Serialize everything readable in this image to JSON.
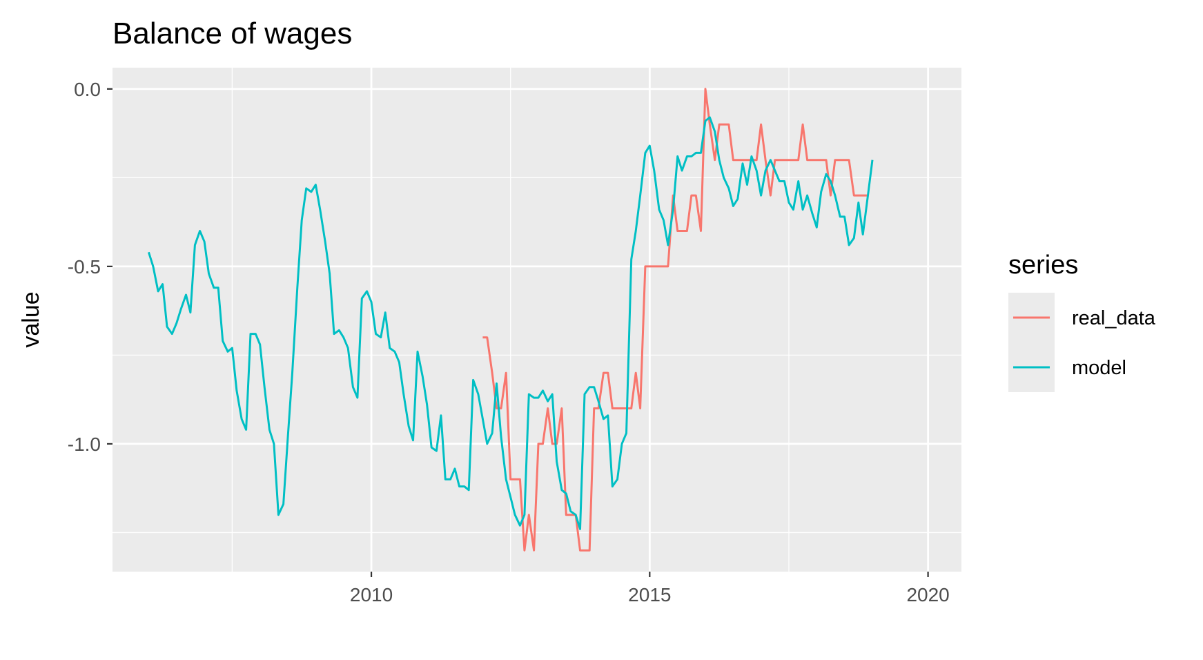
{
  "chart_data": {
    "type": "line",
    "title": "Balance of wages",
    "xlabel": "",
    "ylabel": "value",
    "xlim": [
      2005.35,
      2020.6
    ],
    "ylim": [
      -1.36,
      0.06
    ],
    "x_ticks": [
      2010,
      2015,
      2020
    ],
    "x_tick_labels": [
      "2010",
      "2015",
      "2020"
    ],
    "y_ticks": [
      0.0,
      -0.5,
      -1.0
    ],
    "y_tick_labels": [
      "0.0",
      "-0.5",
      "-1.0"
    ],
    "grid": true,
    "legend": {
      "title": "series",
      "placement": "right",
      "entries": [
        "real_data",
        "model"
      ]
    },
    "series": [
      {
        "name": "real_data",
        "color": "#F8766D",
        "points": [
          [
            2012.0,
            -0.7
          ],
          [
            2012.08,
            -0.7
          ],
          [
            2012.17,
            -0.8
          ],
          [
            2012.25,
            -0.9
          ],
          [
            2012.33,
            -0.9
          ],
          [
            2012.42,
            -0.8
          ],
          [
            2012.5,
            -1.1
          ],
          [
            2012.58,
            -1.1
          ],
          [
            2012.67,
            -1.1
          ],
          [
            2012.75,
            -1.3
          ],
          [
            2012.83,
            -1.2
          ],
          [
            2012.92,
            -1.3
          ],
          [
            2013.0,
            -1.0
          ],
          [
            2013.08,
            -1.0
          ],
          [
            2013.17,
            -0.9
          ],
          [
            2013.25,
            -1.0
          ],
          [
            2013.33,
            -1.0
          ],
          [
            2013.42,
            -0.9
          ],
          [
            2013.5,
            -1.2
          ],
          [
            2013.58,
            -1.2
          ],
          [
            2013.67,
            -1.2
          ],
          [
            2013.75,
            -1.3
          ],
          [
            2013.83,
            -1.3
          ],
          [
            2013.92,
            -1.3
          ],
          [
            2014.0,
            -0.9
          ],
          [
            2014.08,
            -0.9
          ],
          [
            2014.17,
            -0.8
          ],
          [
            2014.25,
            -0.8
          ],
          [
            2014.33,
            -0.9
          ],
          [
            2014.42,
            -0.9
          ],
          [
            2014.5,
            -0.9
          ],
          [
            2014.58,
            -0.9
          ],
          [
            2014.67,
            -0.9
          ],
          [
            2014.75,
            -0.8
          ],
          [
            2014.83,
            -0.9
          ],
          [
            2014.92,
            -0.5
          ],
          [
            2015.0,
            -0.5
          ],
          [
            2015.08,
            -0.5
          ],
          [
            2015.17,
            -0.5
          ],
          [
            2015.25,
            -0.5
          ],
          [
            2015.33,
            -0.5
          ],
          [
            2015.42,
            -0.3
          ],
          [
            2015.5,
            -0.4
          ],
          [
            2015.58,
            -0.4
          ],
          [
            2015.67,
            -0.4
          ],
          [
            2015.75,
            -0.3
          ],
          [
            2015.83,
            -0.3
          ],
          [
            2015.92,
            -0.4
          ],
          [
            2016.0,
            0.0
          ],
          [
            2016.08,
            -0.1
          ],
          [
            2016.17,
            -0.2
          ],
          [
            2016.25,
            -0.1
          ],
          [
            2016.33,
            -0.1
          ],
          [
            2016.42,
            -0.1
          ],
          [
            2016.5,
            -0.2
          ],
          [
            2016.58,
            -0.2
          ],
          [
            2016.67,
            -0.2
          ],
          [
            2016.75,
            -0.2
          ],
          [
            2016.83,
            -0.2
          ],
          [
            2016.92,
            -0.2
          ],
          [
            2017.0,
            -0.1
          ],
          [
            2017.08,
            -0.2
          ],
          [
            2017.17,
            -0.3
          ],
          [
            2017.25,
            -0.2
          ],
          [
            2017.33,
            -0.2
          ],
          [
            2017.42,
            -0.2
          ],
          [
            2017.5,
            -0.2
          ],
          [
            2017.58,
            -0.2
          ],
          [
            2017.67,
            -0.2
          ],
          [
            2017.75,
            -0.1
          ],
          [
            2017.83,
            -0.2
          ],
          [
            2017.92,
            -0.2
          ],
          [
            2018.0,
            -0.2
          ],
          [
            2018.08,
            -0.2
          ],
          [
            2018.17,
            -0.2
          ],
          [
            2018.25,
            -0.3
          ],
          [
            2018.33,
            -0.2
          ],
          [
            2018.42,
            -0.2
          ],
          [
            2018.5,
            -0.2
          ],
          [
            2018.58,
            -0.2
          ],
          [
            2018.67,
            -0.3
          ],
          [
            2018.75,
            -0.3
          ],
          [
            2018.83,
            -0.3
          ],
          [
            2018.92,
            -0.3
          ]
        ]
      },
      {
        "name": "model",
        "color": "#00BFC4",
        "points": [
          [
            2006.0,
            -0.46
          ],
          [
            2006.08,
            -0.5
          ],
          [
            2006.17,
            -0.57
          ],
          [
            2006.25,
            -0.55
          ],
          [
            2006.33,
            -0.67
          ],
          [
            2006.42,
            -0.69
          ],
          [
            2006.5,
            -0.66
          ],
          [
            2006.58,
            -0.62
          ],
          [
            2006.67,
            -0.58
          ],
          [
            2006.75,
            -0.63
          ],
          [
            2006.83,
            -0.44
          ],
          [
            2006.92,
            -0.4
          ],
          [
            2007.0,
            -0.43
          ],
          [
            2007.08,
            -0.52
          ],
          [
            2007.17,
            -0.56
          ],
          [
            2007.25,
            -0.56
          ],
          [
            2007.33,
            -0.71
          ],
          [
            2007.42,
            -0.74
          ],
          [
            2007.5,
            -0.73
          ],
          [
            2007.58,
            -0.85
          ],
          [
            2007.67,
            -0.93
          ],
          [
            2007.75,
            -0.96
          ],
          [
            2007.83,
            -0.69
          ],
          [
            2007.92,
            -0.69
          ],
          [
            2008.0,
            -0.72
          ],
          [
            2008.08,
            -0.84
          ],
          [
            2008.17,
            -0.96
          ],
          [
            2008.25,
            -1.0
          ],
          [
            2008.33,
            -1.2
          ],
          [
            2008.42,
            -1.17
          ],
          [
            2008.5,
            -0.98
          ],
          [
            2008.58,
            -0.8
          ],
          [
            2008.67,
            -0.56
          ],
          [
            2008.75,
            -0.37
          ],
          [
            2008.83,
            -0.28
          ],
          [
            2008.92,
            -0.29
          ],
          [
            2009.0,
            -0.27
          ],
          [
            2009.08,
            -0.34
          ],
          [
            2009.17,
            -0.43
          ],
          [
            2009.25,
            -0.52
          ],
          [
            2009.33,
            -0.69
          ],
          [
            2009.42,
            -0.68
          ],
          [
            2009.5,
            -0.7
          ],
          [
            2009.58,
            -0.73
          ],
          [
            2009.67,
            -0.84
          ],
          [
            2009.75,
            -0.87
          ],
          [
            2009.83,
            -0.59
          ],
          [
            2009.92,
            -0.57
          ],
          [
            2010.0,
            -0.6
          ],
          [
            2010.08,
            -0.69
          ],
          [
            2010.17,
            -0.7
          ],
          [
            2010.25,
            -0.63
          ],
          [
            2010.33,
            -0.73
          ],
          [
            2010.42,
            -0.74
          ],
          [
            2010.5,
            -0.77
          ],
          [
            2010.58,
            -0.86
          ],
          [
            2010.67,
            -0.95
          ],
          [
            2010.75,
            -0.99
          ],
          [
            2010.83,
            -0.74
          ],
          [
            2010.92,
            -0.81
          ],
          [
            2011.0,
            -0.89
          ],
          [
            2011.08,
            -1.01
          ],
          [
            2011.17,
            -1.02
          ],
          [
            2011.25,
            -0.92
          ],
          [
            2011.33,
            -1.1
          ],
          [
            2011.42,
            -1.1
          ],
          [
            2011.5,
            -1.07
          ],
          [
            2011.58,
            -1.12
          ],
          [
            2011.67,
            -1.12
          ],
          [
            2011.75,
            -1.13
          ],
          [
            2011.83,
            -0.82
          ],
          [
            2011.92,
            -0.86
          ],
          [
            2012.0,
            -0.93
          ],
          [
            2012.08,
            -1.0
          ],
          [
            2012.17,
            -0.97
          ],
          [
            2012.25,
            -0.83
          ],
          [
            2012.33,
            -0.98
          ],
          [
            2012.42,
            -1.1
          ],
          [
            2012.5,
            -1.15
          ],
          [
            2012.58,
            -1.2
          ],
          [
            2012.67,
            -1.23
          ],
          [
            2012.75,
            -1.2
          ],
          [
            2012.83,
            -0.86
          ],
          [
            2012.92,
            -0.87
          ],
          [
            2013.0,
            -0.87
          ],
          [
            2013.08,
            -0.85
          ],
          [
            2013.17,
            -0.88
          ],
          [
            2013.25,
            -0.86
          ],
          [
            2013.33,
            -1.05
          ],
          [
            2013.42,
            -1.13
          ],
          [
            2013.5,
            -1.14
          ],
          [
            2013.58,
            -1.19
          ],
          [
            2013.67,
            -1.2
          ],
          [
            2013.75,
            -1.24
          ],
          [
            2013.83,
            -0.86
          ],
          [
            2013.92,
            -0.84
          ],
          [
            2014.0,
            -0.84
          ],
          [
            2014.08,
            -0.88
          ],
          [
            2014.17,
            -0.93
          ],
          [
            2014.25,
            -0.92
          ],
          [
            2014.33,
            -1.12
          ],
          [
            2014.42,
            -1.1
          ],
          [
            2014.5,
            -1.0
          ],
          [
            2014.58,
            -0.97
          ],
          [
            2014.67,
            -0.48
          ],
          [
            2014.75,
            -0.4
          ],
          [
            2014.83,
            -0.3
          ],
          [
            2014.92,
            -0.18
          ],
          [
            2015.0,
            -0.16
          ],
          [
            2015.08,
            -0.23
          ],
          [
            2015.17,
            -0.34
          ],
          [
            2015.25,
            -0.37
          ],
          [
            2015.33,
            -0.44
          ],
          [
            2015.42,
            -0.34
          ],
          [
            2015.5,
            -0.19
          ],
          [
            2015.58,
            -0.23
          ],
          [
            2015.67,
            -0.19
          ],
          [
            2015.75,
            -0.19
          ],
          [
            2015.83,
            -0.18
          ],
          [
            2015.92,
            -0.18
          ],
          [
            2016.0,
            -0.09
          ],
          [
            2016.08,
            -0.08
          ],
          [
            2016.17,
            -0.12
          ],
          [
            2016.25,
            -0.2
          ],
          [
            2016.33,
            -0.25
          ],
          [
            2016.42,
            -0.28
          ],
          [
            2016.5,
            -0.33
          ],
          [
            2016.58,
            -0.31
          ],
          [
            2016.67,
            -0.21
          ],
          [
            2016.75,
            -0.27
          ],
          [
            2016.83,
            -0.19
          ],
          [
            2016.92,
            -0.23
          ],
          [
            2017.0,
            -0.3
          ],
          [
            2017.08,
            -0.23
          ],
          [
            2017.17,
            -0.2
          ],
          [
            2017.25,
            -0.23
          ],
          [
            2017.33,
            -0.26
          ],
          [
            2017.42,
            -0.26
          ],
          [
            2017.5,
            -0.32
          ],
          [
            2017.58,
            -0.34
          ],
          [
            2017.67,
            -0.26
          ],
          [
            2017.75,
            -0.34
          ],
          [
            2017.83,
            -0.3
          ],
          [
            2017.92,
            -0.35
          ],
          [
            2018.0,
            -0.39
          ],
          [
            2018.08,
            -0.29
          ],
          [
            2018.17,
            -0.24
          ],
          [
            2018.25,
            -0.26
          ],
          [
            2018.33,
            -0.3
          ],
          [
            2018.42,
            -0.36
          ],
          [
            2018.5,
            -0.36
          ],
          [
            2018.58,
            -0.44
          ],
          [
            2018.67,
            -0.42
          ],
          [
            2018.75,
            -0.32
          ],
          [
            2018.83,
            -0.41
          ],
          [
            2018.92,
            -0.3
          ],
          [
            2019.0,
            -0.2
          ]
        ]
      }
    ]
  }
}
